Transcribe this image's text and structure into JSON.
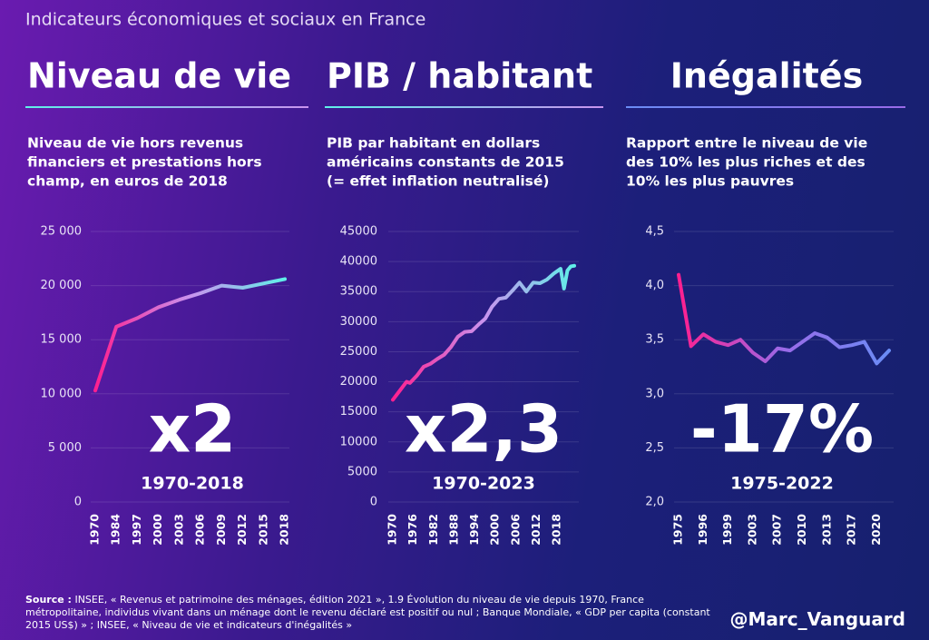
{
  "header": "Indicateurs économiques et sociaux en France",
  "chart_data": [
    {
      "type": "line",
      "title": "Niveau de vie",
      "subtitle": [
        "Niveau de vie hors revenus",
        "financiers et prestations hors",
        "champ, en euros de 2018"
      ],
      "annotation": "x2",
      "period": "1970-2018",
      "categories": [
        "1970",
        "1984",
        "1997",
        "2000",
        "2003",
        "2006",
        "2009",
        "2012",
        "2015",
        "2018"
      ],
      "values": [
        10300,
        16200,
        17000,
        18000,
        18700,
        19300,
        20000,
        19800,
        20200,
        20600
      ],
      "ylim": [
        0,
        25000
      ],
      "yticks": [
        0,
        {
          "value": 5000,
          "label": "5 000"
        },
        {
          "value": 10000,
          "label": "10 000"
        },
        {
          "value": 15000,
          "label": "15 000"
        },
        {
          "value": 20000,
          "label": "20 000"
        },
        {
          "value": 25000,
          "label": "25 000"
        }
      ],
      "grid": true,
      "gradient": [
        "#ff1f8f",
        "#c993ee",
        "#5ff0e8"
      ]
    },
    {
      "type": "line",
      "title": "PIB / habitant",
      "subtitle": [
        "PIB par habitant en dollars",
        "américains constants de 2015",
        "(= effet inflation neutralisé)"
      ],
      "annotation": "x2,3",
      "period": "1970-2023",
      "x": [
        1970,
        1972,
        1974,
        1975,
        1977,
        1979,
        1981,
        1983,
        1985,
        1987,
        1989,
        1991,
        1993,
        1995,
        1997,
        1999,
        2001,
        2003,
        2005,
        2007,
        2009,
        2011,
        2013,
        2015,
        2017,
        2019,
        2020,
        2021,
        2022,
        2023
      ],
      "values": [
        17000,
        18500,
        20000,
        19800,
        21000,
        22500,
        23000,
        23800,
        24500,
        25800,
        27500,
        28300,
        28400,
        29500,
        30500,
        32500,
        33800,
        34000,
        35200,
        36500,
        35000,
        36500,
        36400,
        37000,
        38000,
        38800,
        35500,
        38500,
        39200,
        39300
      ],
      "xlim": [
        1970,
        2023
      ],
      "xticks": [
        1970,
        1976,
        1982,
        1988,
        1994,
        2000,
        2006,
        2012,
        2018
      ],
      "ylim": [
        0,
        45000
      ],
      "yticks": [
        0,
        5000,
        10000,
        15000,
        20000,
        25000,
        30000,
        35000,
        40000,
        45000
      ],
      "grid": true,
      "gradient": [
        "#ff1f8f",
        "#c993ee",
        "#5ff0e8"
      ]
    },
    {
      "type": "line",
      "title": "Inégalités",
      "subtitle": [
        "Rapport entre le niveau de vie",
        "des 10% les plus riches et des",
        "10% les plus pauvres"
      ],
      "annotation": "-17%",
      "period": "1975-2022",
      "categories": [
        "1975",
        null,
        "1996",
        null,
        "1999",
        null,
        "2003",
        null,
        "2007",
        null,
        "2010",
        null,
        "2013",
        null,
        "2017",
        null,
        "2020",
        null
      ],
      "values": [
        4.1,
        3.44,
        3.55,
        3.48,
        3.45,
        3.5,
        3.38,
        3.3,
        3.42,
        3.4,
        3.48,
        3.56,
        3.52,
        3.43,
        3.45,
        3.48,
        3.28,
        3.4
      ],
      "ylim": [
        2.0,
        4.5
      ],
      "yticks": [
        {
          "value": 2.0,
          "label": "2,0"
        },
        {
          "value": 2.5,
          "label": "2,5"
        },
        {
          "value": 3.0,
          "label": "3,0"
        },
        {
          "value": 3.5,
          "label": "3,5"
        },
        {
          "value": 4.0,
          "label": "4,0"
        },
        {
          "value": 4.5,
          "label": "4,5"
        }
      ],
      "grid": true,
      "gradient": [
        "#ff1f8f",
        "#9a6ae8",
        "#6a8cf5"
      ]
    }
  ],
  "source_label": "Source :",
  "source": "INSEE, « Revenus et patrimoine des ménages, édition 2021 », 1.9 Évolution du niveau de vie depuis 1970, France métropolitaine, individus vivant dans un ménage dont le revenu déclaré est positif ou nul ; Banque Mondiale, « GDP per capita (constant 2015 US$) » ; INSEE, « Niveau de vie et indicateurs d'inégalités »",
  "handle": "@Marc_Vanguard"
}
